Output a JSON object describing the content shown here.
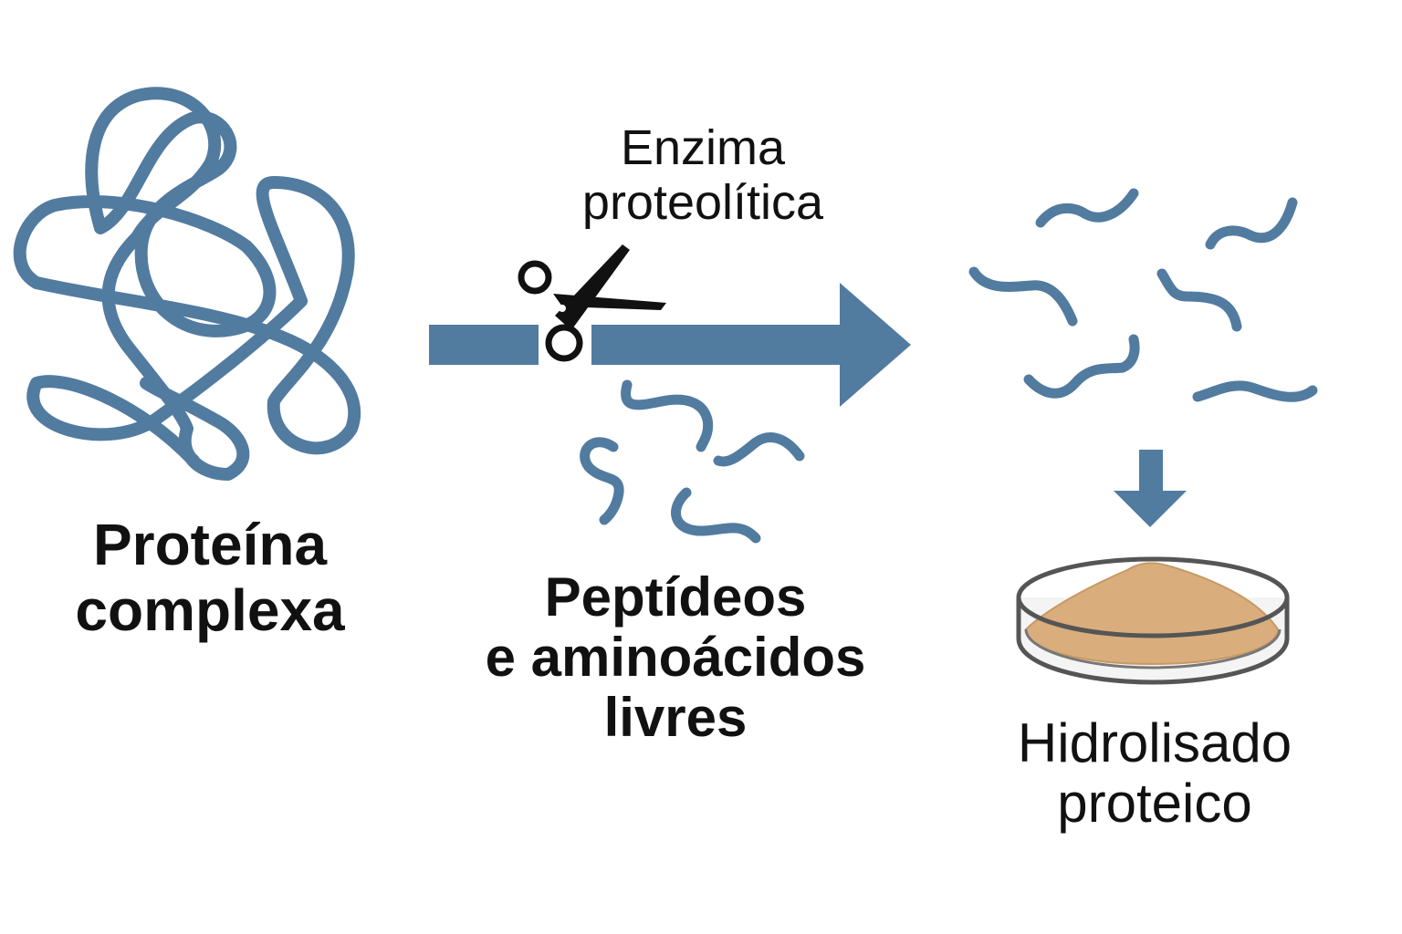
{
  "labels": {
    "protein": [
      "Proteína",
      "complexa"
    ],
    "enzyme": [
      "Enzima",
      "proteolítica"
    ],
    "peptides": [
      "Peptídeos",
      "e aminoácidos",
      "livres"
    ],
    "hydrolysate": [
      "Hidrolisado",
      "proteico"
    ]
  },
  "colors": {
    "strand": "#527ba0",
    "arrow": "#527ba0",
    "text": "#111111",
    "powder": "#d9ad7c",
    "dish_outline": "#555555",
    "scissors": "#111111"
  },
  "icons": {
    "cutter": "scissors-icon",
    "sample": "petri-dish-icon",
    "material": "protein-strand-icon"
  }
}
